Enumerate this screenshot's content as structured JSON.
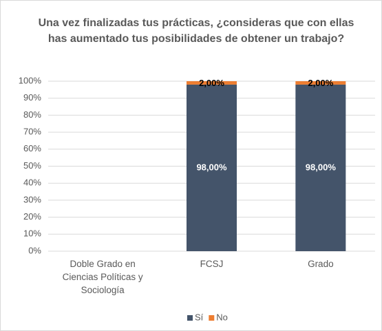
{
  "chart_data": {
    "type": "stacked_bar",
    "title": "Una vez finalizadas tus prácticas, ¿consideras que con ellas has aumentado tus posibilidades de obtener un trabajo?",
    "categories": [
      "Doble Grado en Ciencias Políticas y Sociología",
      "FCSJ",
      "Grado"
    ],
    "series": [
      {
        "name": "Sí",
        "color": "#44546a",
        "values": [
          null,
          98,
          98
        ],
        "value_labels": [
          null,
          "98,00%",
          "98,00%"
        ]
      },
      {
        "name": "No",
        "color": "#ed7d31",
        "values": [
          null,
          2,
          2
        ],
        "value_labels": [
          null,
          "2,00%",
          "2,00%"
        ]
      }
    ],
    "ylim": [
      0,
      100
    ],
    "yticks": [
      {
        "value": 0,
        "label": "0%"
      },
      {
        "value": 10,
        "label": "10%"
      },
      {
        "value": 20,
        "label": "20%"
      },
      {
        "value": 30,
        "label": "30%"
      },
      {
        "value": 40,
        "label": "40%"
      },
      {
        "value": 50,
        "label": "50%"
      },
      {
        "value": 60,
        "label": "60%"
      },
      {
        "value": 70,
        "label": "70%"
      },
      {
        "value": 80,
        "label": "80%"
      },
      {
        "value": 90,
        "label": "90%"
      },
      {
        "value": 100,
        "label": "100%"
      }
    ],
    "grid": true,
    "legend": "bottom"
  }
}
